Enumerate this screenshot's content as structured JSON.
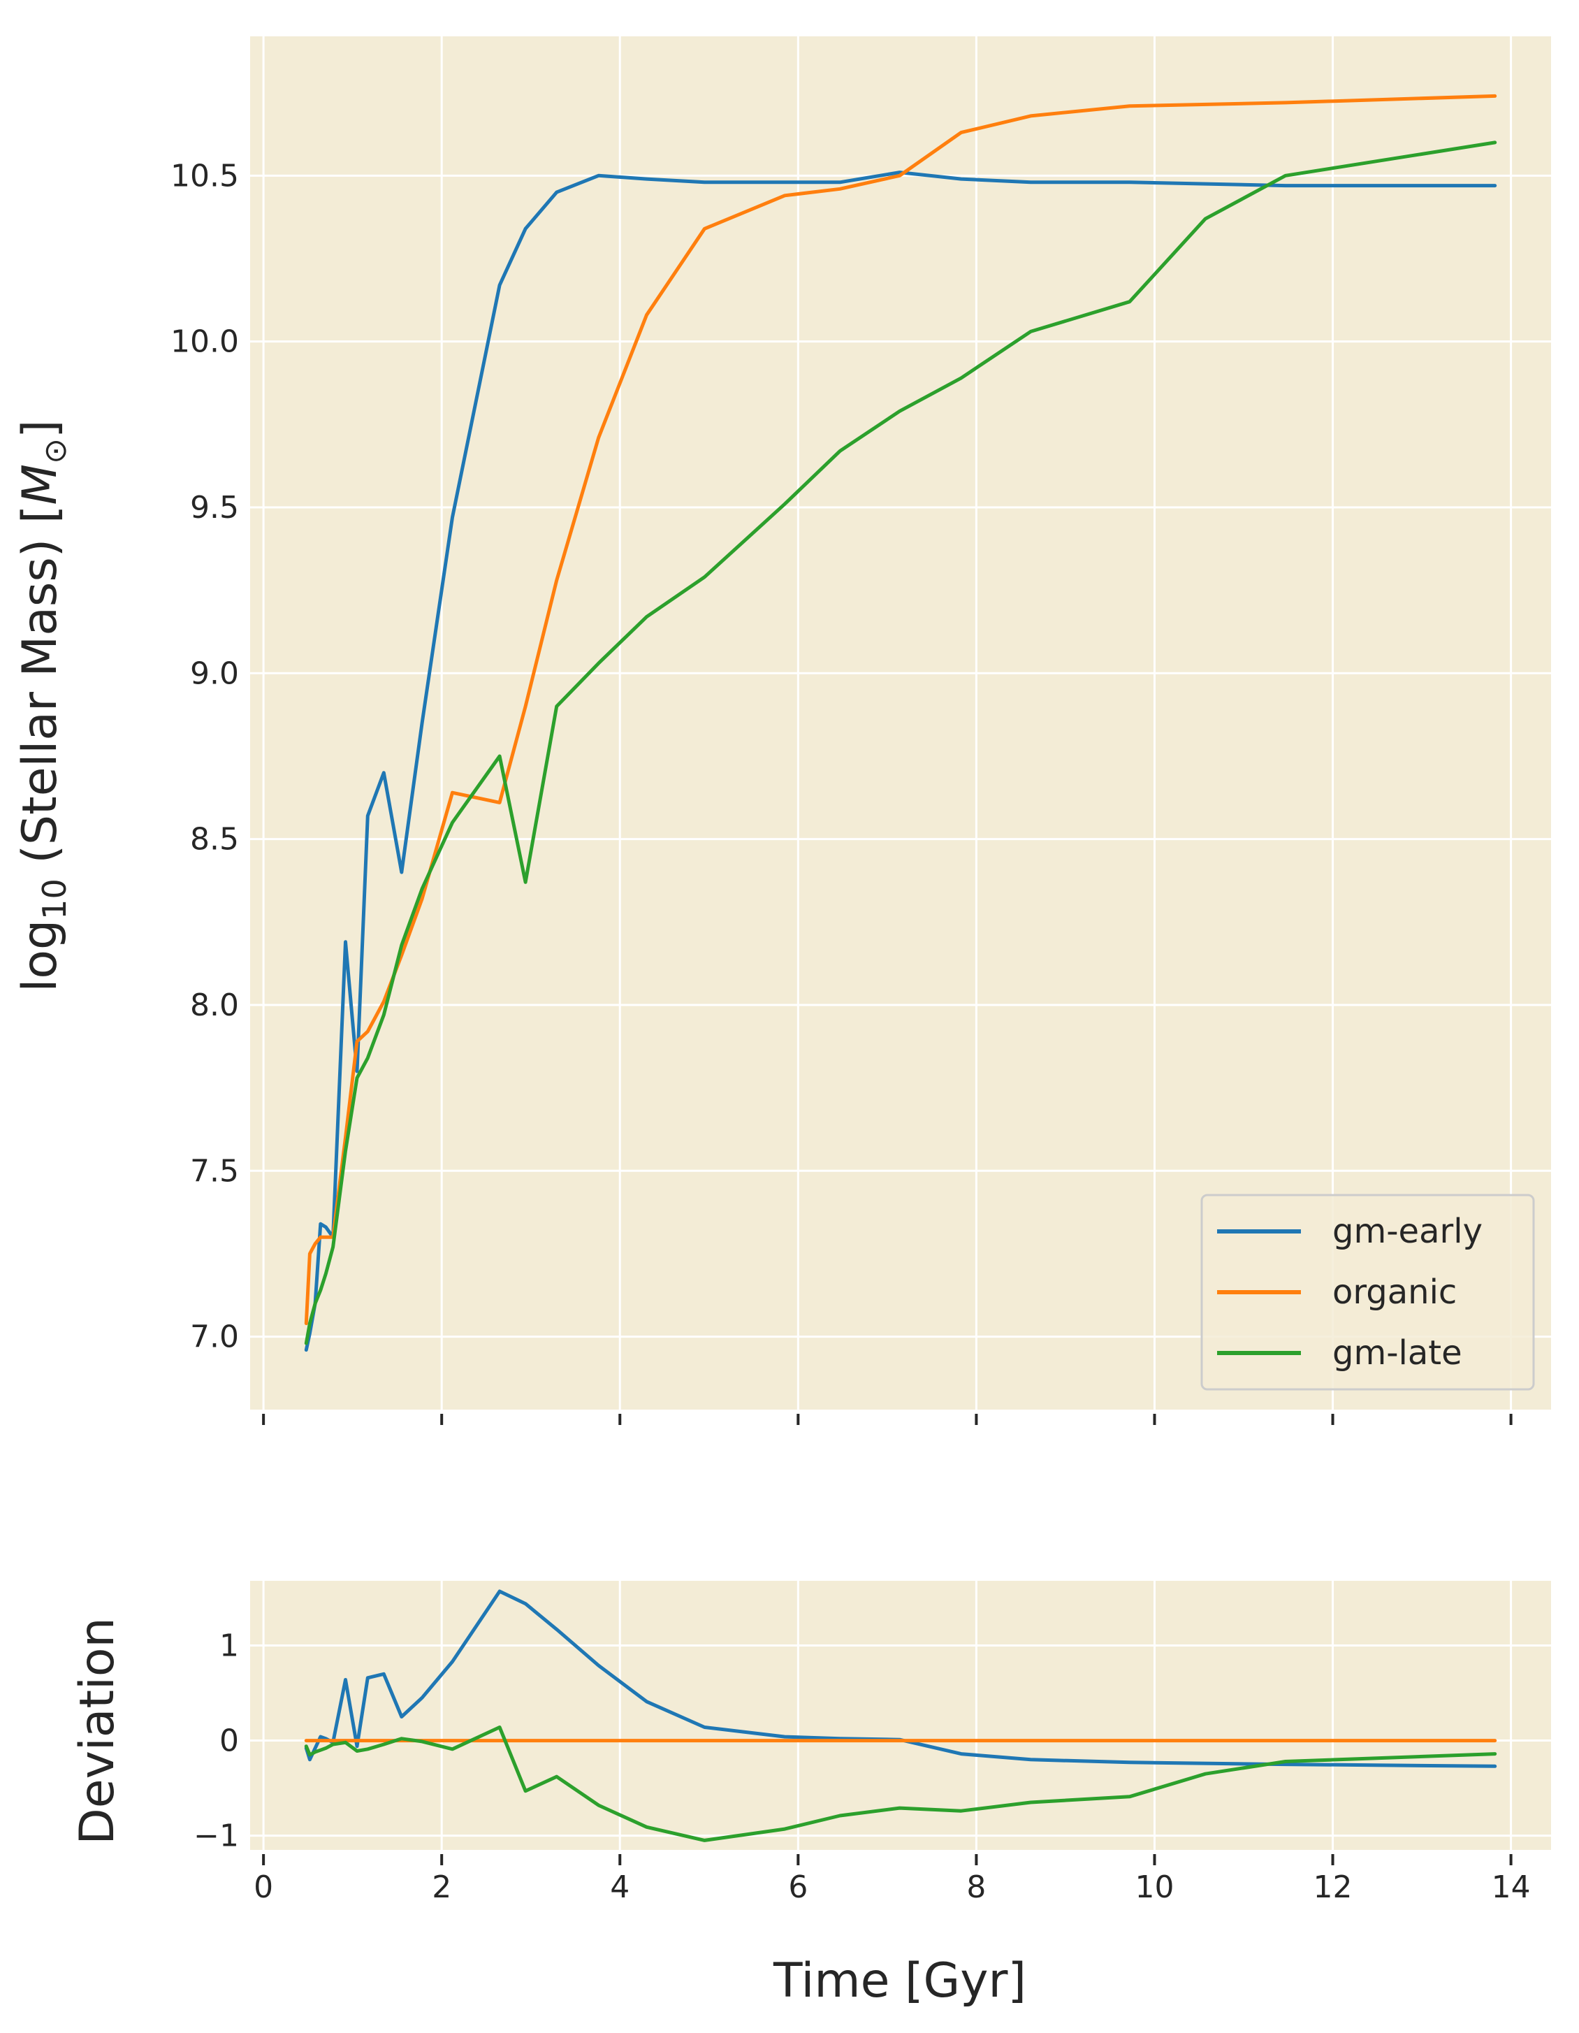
{
  "colors": {
    "plot_background": "#f3ecd6",
    "grid": "#ffffff",
    "gm-early": "#1f77b4",
    "organic": "#ff7f0e",
    "gm-late": "#2ca02c"
  },
  "chart_data": [
    {
      "type": "line",
      "panel": "top",
      "title": "",
      "xlabel": "",
      "ylabel_main": "log",
      "ylabel_sub": "10",
      "ylabel_rest": " (Stellar Mass) [",
      "ylabel_unit": "M",
      "ylabel_unit_sub": "⊙",
      "ylabel_end": "]",
      "xlim": [
        -0.15,
        14.45
      ],
      "ylim": [
        6.78,
        10.92
      ],
      "xticks": [
        0,
        2,
        4,
        6,
        8,
        10,
        12,
        14
      ],
      "yticks": [
        7.0,
        7.5,
        8.0,
        8.5,
        9.0,
        9.5,
        10.0,
        10.5
      ],
      "ytick_labels": [
        "7.0",
        "7.5",
        "8.0",
        "8.5",
        "9.0",
        "9.5",
        "10.0",
        "10.5"
      ],
      "grid": true,
      "legend": "bottom-right",
      "series": [
        {
          "name": "gm-early",
          "x": [
            0.48,
            0.52,
            0.58,
            0.64,
            0.7,
            0.78,
            0.92,
            1.05,
            1.17,
            1.35,
            1.55,
            1.78,
            2.12,
            2.65,
            2.94,
            3.29,
            3.76,
            4.3,
            4.95,
            5.85,
            6.47,
            7.14,
            7.83,
            8.61,
            9.72,
            11.47,
            13.82
          ],
          "y": [
            6.96,
            7.01,
            7.1,
            7.34,
            7.33,
            7.3,
            8.19,
            7.8,
            8.57,
            8.7,
            8.4,
            8.85,
            9.47,
            10.17,
            10.34,
            10.45,
            10.5,
            10.49,
            10.48,
            10.48,
            10.48,
            10.51,
            10.49,
            10.48,
            10.48,
            10.47,
            10.47
          ]
        },
        {
          "name": "organic",
          "x": [
            0.48,
            0.52,
            0.58,
            0.64,
            0.7,
            0.78,
            0.92,
            1.05,
            1.17,
            1.35,
            1.55,
            1.78,
            2.12,
            2.65,
            2.94,
            3.29,
            3.76,
            4.3,
            4.95,
            5.85,
            6.47,
            7.14,
            7.83,
            8.61,
            9.72,
            11.47,
            13.82
          ],
          "y": [
            7.04,
            7.25,
            7.28,
            7.3,
            7.3,
            7.3,
            7.6,
            7.89,
            7.92,
            8.01,
            8.15,
            8.32,
            8.64,
            8.61,
            8.9,
            9.28,
            9.71,
            10.08,
            10.34,
            10.44,
            10.46,
            10.5,
            10.63,
            10.68,
            10.71,
            10.72,
            10.74
          ]
        },
        {
          "name": "gm-late",
          "x": [
            0.48,
            0.52,
            0.58,
            0.64,
            0.7,
            0.78,
            0.92,
            1.05,
            1.17,
            1.35,
            1.55,
            1.78,
            2.12,
            2.65,
            2.94,
            3.29,
            3.76,
            4.3,
            4.95,
            5.85,
            6.47,
            7.14,
            7.83,
            8.61,
            9.72,
            10.57,
            11.47,
            13.82
          ],
          "y": [
            6.98,
            7.04,
            7.1,
            7.14,
            7.19,
            7.27,
            7.56,
            7.78,
            7.84,
            7.97,
            8.18,
            8.35,
            8.55,
            8.75,
            8.37,
            8.9,
            9.03,
            9.17,
            9.29,
            9.51,
            9.67,
            9.79,
            9.89,
            10.03,
            10.12,
            10.37,
            10.5,
            10.6
          ]
        }
      ]
    },
    {
      "type": "line",
      "panel": "bottom",
      "title": "",
      "xlabel": "Time [Gyr]",
      "ylabel": "Deviation",
      "xlim": [
        -0.15,
        14.45
      ],
      "ylim": [
        -1.15,
        1.68
      ],
      "xticks": [
        0,
        2,
        4,
        6,
        8,
        10,
        12,
        14
      ],
      "xtick_labels": [
        "0",
        "2",
        "4",
        "6",
        "8",
        "10",
        "12",
        "14"
      ],
      "yticks": [
        -1,
        0,
        1
      ],
      "ytick_labels": [
        "−1",
        "0",
        "1"
      ],
      "grid": true,
      "series": [
        {
          "name": "gm-early",
          "x": [
            0.48,
            0.52,
            0.58,
            0.64,
            0.7,
            0.78,
            0.92,
            1.05,
            1.17,
            1.35,
            1.55,
            1.78,
            2.12,
            2.65,
            2.94,
            3.29,
            3.76,
            4.3,
            4.95,
            5.85,
            6.47,
            7.14,
            7.83,
            8.61,
            9.72,
            11.47,
            13.82
          ],
          "y": [
            -0.08,
            -0.2,
            -0.08,
            0.04,
            0.02,
            -0.02,
            0.64,
            -0.06,
            0.66,
            0.7,
            0.25,
            0.45,
            0.83,
            1.57,
            1.44,
            1.17,
            0.79,
            0.41,
            0.14,
            0.04,
            0.02,
            0.01,
            -0.14,
            -0.2,
            -0.23,
            -0.25,
            -0.27
          ]
        },
        {
          "name": "organic",
          "x": [
            0.48,
            13.82
          ],
          "y": [
            0.0,
            0.0
          ]
        },
        {
          "name": "gm-late",
          "x": [
            0.48,
            0.52,
            0.58,
            0.64,
            0.7,
            0.78,
            0.92,
            1.05,
            1.17,
            1.35,
            1.55,
            1.78,
            2.12,
            2.65,
            2.94,
            3.29,
            3.76,
            4.3,
            4.95,
            5.85,
            6.47,
            7.14,
            7.83,
            8.61,
            9.72,
            10.57,
            11.47,
            13.82
          ],
          "y": [
            -0.06,
            -0.15,
            -0.12,
            -0.1,
            -0.08,
            -0.04,
            -0.02,
            -0.11,
            -0.09,
            -0.04,
            0.02,
            -0.01,
            -0.09,
            0.14,
            -0.53,
            -0.38,
            -0.68,
            -0.91,
            -1.05,
            -0.93,
            -0.79,
            -0.71,
            -0.74,
            -0.65,
            -0.59,
            -0.35,
            -0.22,
            -0.14
          ]
        }
      ]
    }
  ]
}
